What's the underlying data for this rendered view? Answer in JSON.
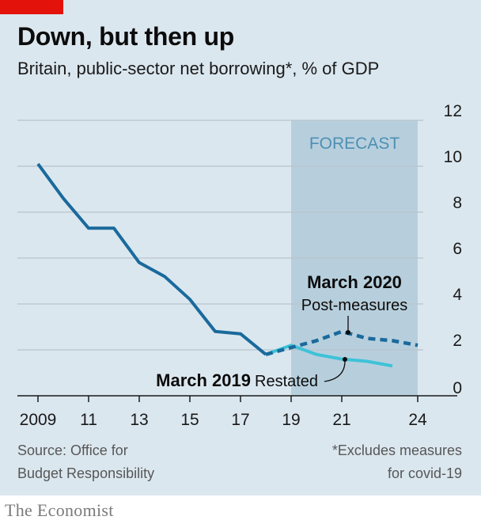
{
  "header": {
    "title": "Down, but then up",
    "subtitle": "Britain, public-sector net borrowing*, % of GDP"
  },
  "footer": {
    "source_line1": "Source: Office for",
    "source_line2": "Budget Responsibility",
    "note_line1": "*Excludes measures",
    "note_line2": "for covid-19",
    "brand": "The Economist"
  },
  "colors": {
    "background": "#dbe7ef",
    "forecast_shade": "#b7cfdd",
    "march2019": "#1a6a9c",
    "march2020": "#1a6a9c",
    "restated": "#3fc2d8",
    "accent_red": "#e3120b"
  },
  "chart_data": {
    "type": "line",
    "title": "Down, but then up",
    "subtitle": "Britain, public-sector net borrowing*, % of GDP",
    "ylim": [
      0,
      12
    ],
    "y_ticks": [
      "0",
      "2",
      "4",
      "6",
      "8",
      "10",
      "12"
    ],
    "xlim": [
      2009,
      2025
    ],
    "x_ticks": [
      {
        "year": 2009,
        "label": "2009"
      },
      {
        "year": 2011,
        "label": "11"
      },
      {
        "year": 2013,
        "label": "13"
      },
      {
        "year": 2015,
        "label": "15"
      },
      {
        "year": 2017,
        "label": "17"
      },
      {
        "year": 2019,
        "label": "19"
      },
      {
        "year": 2021,
        "label": "21"
      },
      {
        "year": 2024,
        "label": "24"
      }
    ],
    "forecast": {
      "label": "FORECAST",
      "from": 2019,
      "to": 2024
    },
    "grid": true,
    "series": [
      {
        "key": "march2019",
        "name": "March 2019",
        "style": "solid",
        "x": [
          2009,
          2010,
          2011,
          2012,
          2013,
          2014,
          2015,
          2016,
          2017,
          2018
        ],
        "y": [
          10.1,
          8.6,
          7.3,
          7.3,
          5.8,
          5.2,
          4.2,
          2.8,
          2.7,
          1.8
        ]
      },
      {
        "key": "march2019_restated",
        "name": "Restated",
        "style": "solid",
        "x": [
          2018,
          2019,
          2020,
          2021,
          2022,
          2023
        ],
        "y": [
          1.8,
          2.2,
          1.8,
          1.6,
          1.5,
          1.3
        ]
      },
      {
        "key": "march2020",
        "name": "March 2020",
        "style": "dashed",
        "x": [
          2018,
          2019,
          2020,
          2021,
          2022,
          2023,
          2024
        ],
        "y": [
          1.8,
          2.1,
          2.4,
          2.8,
          2.5,
          2.4,
          2.2
        ]
      }
    ],
    "annotations": {
      "march2020_title": "March 2020",
      "march2020_sub": "Post-measures",
      "march2019_title": "March 2019",
      "march2019_sub": "Restated"
    }
  }
}
